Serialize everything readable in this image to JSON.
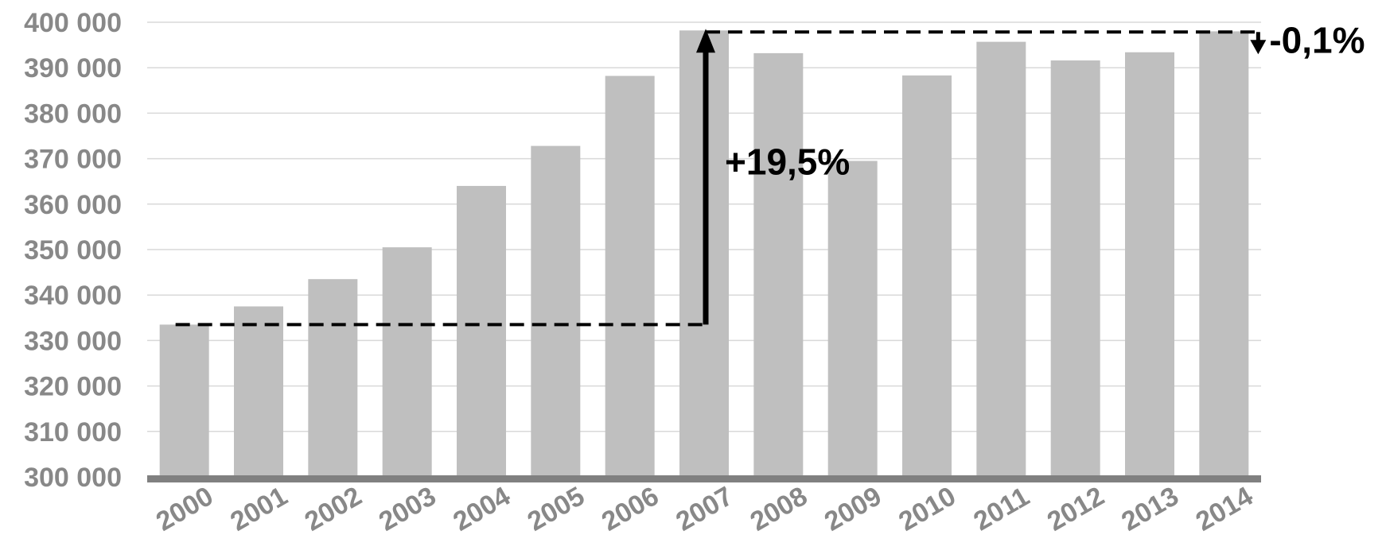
{
  "chart_data": {
    "type": "bar",
    "title": "",
    "xlabel": "",
    "ylabel": "",
    "categories": [
      "2000",
      "2001",
      "2002",
      "2003",
      "2004",
      "2005",
      "2006",
      "2007",
      "2008",
      "2009",
      "2010",
      "2011",
      "2012",
      "2013",
      "2014"
    ],
    "values": [
      333500,
      337500,
      343500,
      350500,
      364000,
      372800,
      388200,
      398200,
      393200,
      369500,
      388300,
      395700,
      391600,
      393400,
      398000
    ],
    "ylim": [
      300000,
      400000
    ],
    "yticks": [
      300000,
      310000,
      320000,
      330000,
      340000,
      350000,
      360000,
      370000,
      380000,
      390000,
      400000
    ],
    "ytick_labels": [
      "300 000",
      "310 000",
      "320 000",
      "330 000",
      "340 000",
      "350 000",
      "360 000",
      "370 000",
      "380 000",
      "390 000",
      "400 000"
    ],
    "grid": true,
    "legend": "none",
    "colors": {
      "bar": "#bfbfbf",
      "grid": "#d9d9d9",
      "axis": "#808080",
      "tick_text": "#888888",
      "annotation": "#000000"
    },
    "annotations": [
      {
        "text": "+19,5%",
        "from_category": "2000",
        "to_category": "2007",
        "from_value": 333500,
        "to_value": 398200
      },
      {
        "text": "-0,1%",
        "from_category": "2007",
        "to_category": "2014",
        "from_value": 398200,
        "to_value": 398000
      }
    ]
  }
}
